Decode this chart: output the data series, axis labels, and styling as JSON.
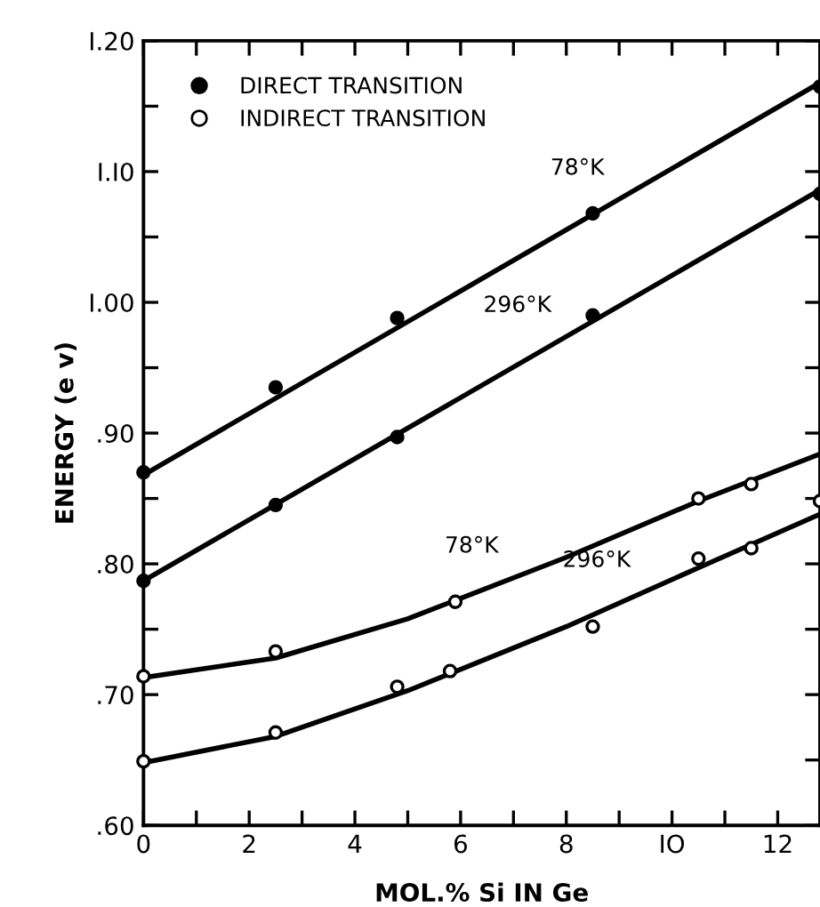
{
  "chart_data": {
    "type": "scatter",
    "xlabel": "MOL.% Si IN Ge",
    "ylabel": "ENERGY (e v)",
    "xlim": [
      0,
      12.8
    ],
    "ylim": [
      0.6,
      1.2
    ],
    "xticks": [
      0,
      {
        "value": 1,
        "label": null
      },
      2,
      {
        "value": 3,
        "label": null
      },
      4,
      {
        "value": 5,
        "label": null
      },
      6,
      {
        "value": 7,
        "label": null
      },
      8,
      {
        "value": 9,
        "label": null
      },
      {
        "value": 10,
        "label": "IO"
      },
      {
        "value": 11,
        "label": null
      },
      12
    ],
    "yticks": [
      {
        "value": 0.6,
        "label": ".60"
      },
      {
        "value": 0.65,
        "label": null
      },
      {
        "value": 0.7,
        "label": ".70"
      },
      {
        "value": 0.75,
        "label": null
      },
      {
        "value": 0.8,
        "label": ".80"
      },
      {
        "value": 0.85,
        "label": null
      },
      {
        "value": 0.9,
        "label": ".90"
      },
      {
        "value": 0.95,
        "label": null
      },
      {
        "value": 1.0,
        "label": "I.00"
      },
      {
        "value": 1.05,
        "label": null
      },
      {
        "value": 1.1,
        "label": "I.I0"
      },
      {
        "value": 1.15,
        "label": null
      },
      {
        "value": 1.2,
        "label": "I.20"
      }
    ],
    "grid": false,
    "legend": "top left",
    "series": [
      {
        "name": "DIRECT TRANSITION",
        "color": "#000000",
        "marker": "circle",
        "x": [
          0,
          2.5,
          4.8,
          8.5,
          12.8,
          0,
          2.5,
          4.8,
          8.5,
          12.8
        ],
        "values": [
          0.87,
          0.935,
          0.988,
          1.068,
          1.165,
          0.787,
          0.845,
          0.897,
          0.99,
          1.083
        ]
      },
      {
        "name": "INDIRECT TRANSITION",
        "color": "#000000",
        "marker": "circle",
        "x": [
          0,
          2.5,
          5.9,
          10.5,
          11.5,
          0,
          2.5,
          4.8,
          5.8,
          8.5,
          10.5,
          11.5,
          12.8
        ],
        "values": [
          0.714,
          0.733,
          0.771,
          0.85,
          0.861,
          0.649,
          0.671,
          0.706,
          0.718,
          0.752,
          0.804,
          0.812,
          0.848
        ]
      },
      {
        "type": "line",
        "marker": "none",
        "color": "#000000",
        "x": [
          0,
          12.8
        ],
        "values": [
          0.868,
          1.168
        ]
      },
      {
        "type": "line",
        "marker": "none",
        "color": "#000000",
        "x": [
          0,
          12.8
        ],
        "values": [
          0.787,
          1.086
        ]
      },
      {
        "type": "line",
        "marker": "none",
        "color": "#000000",
        "x": [
          0,
          2.5,
          5,
          8,
          10.5,
          12.8
        ],
        "values": [
          0.713,
          0.728,
          0.758,
          0.805,
          0.848,
          0.884
        ]
      },
      {
        "type": "line",
        "marker": "none",
        "color": "#000000",
        "x": [
          0,
          2.5,
          5,
          8,
          10.5,
          12.8
        ],
        "values": [
          0.648,
          0.668,
          0.703,
          0.752,
          0.797,
          0.838
        ]
      }
    ],
    "annotations": [
      {
        "text": "78°K",
        "x": 9.0,
        "y": 1.079
      },
      {
        "text": "296°K",
        "x": 8.0,
        "y": 0.974
      },
      {
        "text": "78°K",
        "x": 7.0,
        "y": 0.79
      },
      {
        "text": "296°K",
        "x": 9.5,
        "y": 0.779
      }
    ]
  }
}
